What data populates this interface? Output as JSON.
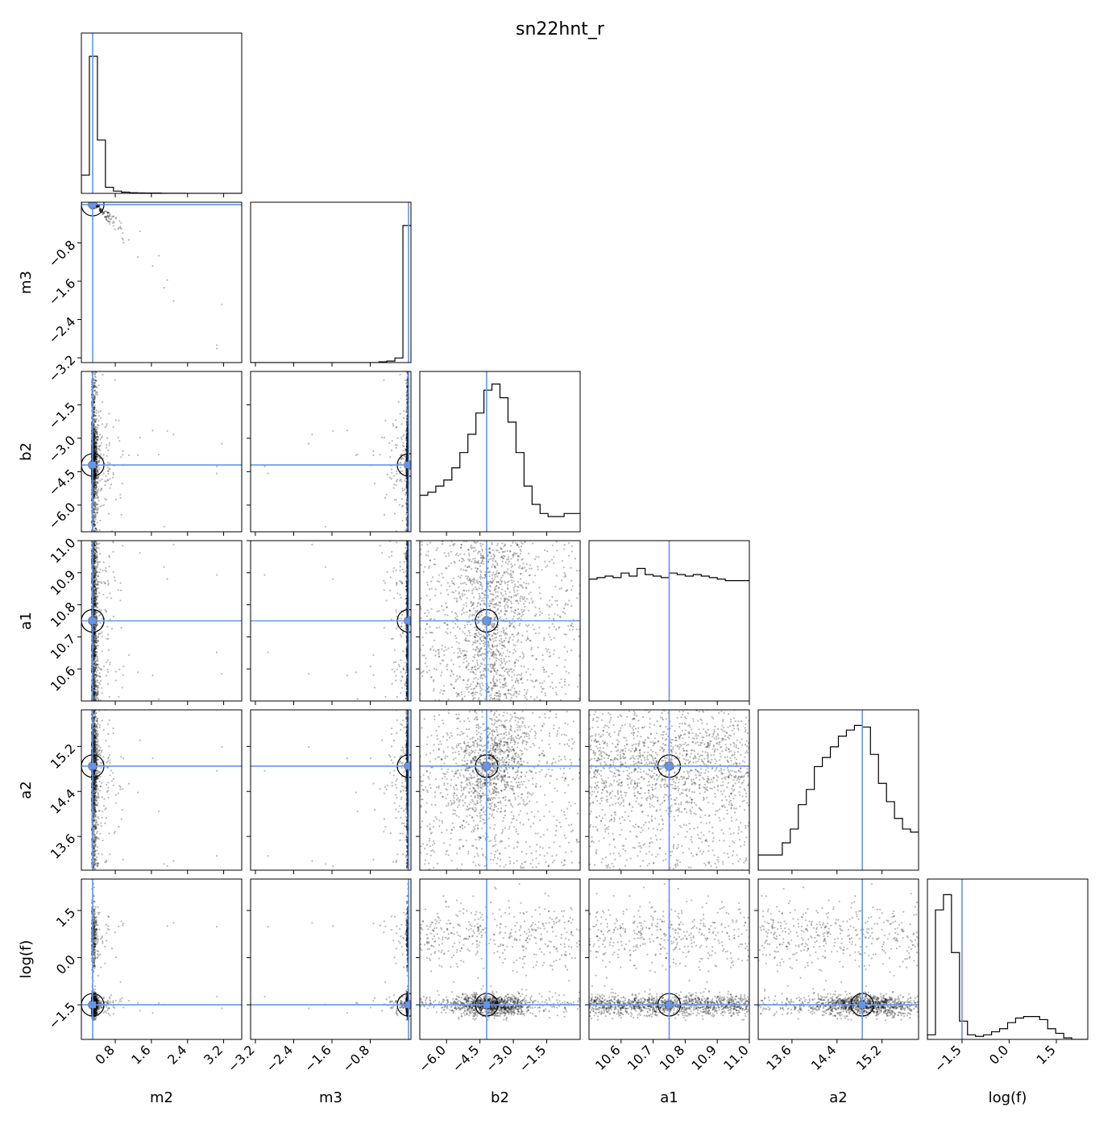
{
  "chart_data": {
    "type": "corner",
    "title": "sn22hnt_r",
    "truth_color": "#6495ed",
    "parameters": [
      {
        "label": "m2",
        "range": [
          0.05,
          3.6
        ],
        "ticks": [
          "0.8",
          "1.6",
          "2.4",
          "3.2"
        ],
        "tick_values": [
          0.8,
          1.6,
          2.4,
          3.2
        ],
        "truth": 0.3
      },
      {
        "label": "m3",
        "range": [
          -3.3,
          0.05
        ],
        "ticks": [
          "−3.2",
          "−2.4",
          "−1.6",
          "−0.8"
        ],
        "tick_values": [
          -3.2,
          -2.4,
          -1.6,
          -0.8
        ],
        "truth": 0.0
      },
      {
        "label": "b2",
        "range": [
          -7.2,
          0.0
        ],
        "ticks": [
          "−6.0",
          "−4.5",
          "−3.0",
          "−1.5"
        ],
        "tick_values": [
          -6.0,
          -4.5,
          -3.0,
          -1.5
        ],
        "truth": -4.2
      },
      {
        "label": "a1",
        "range": [
          10.5,
          11.0
        ],
        "ticks": [
          "10.6",
          "10.7",
          "10.8",
          "10.9",
          "11.0"
        ],
        "tick_values": [
          10.6,
          10.7,
          10.8,
          10.9,
          11.0
        ],
        "truth": 10.75
      },
      {
        "label": "a2",
        "range": [
          13.0,
          15.85
        ],
        "ticks": [
          "13.6",
          "14.4",
          "15.2"
        ],
        "tick_values": [
          13.6,
          14.4,
          15.2
        ],
        "truth": 14.85
      },
      {
        "label": "log(f)",
        "range": [
          -2.6,
          2.5
        ],
        "ticks": [
          "−1.5",
          "0.0",
          "1.5"
        ],
        "tick_values": [
          -1.5,
          0.0,
          1.5
        ],
        "truth": -1.5
      }
    ],
    "histograms": [
      {
        "parameter": "m2",
        "counts": [
          0.12,
          0.9,
          0.35,
          0.04,
          0.015,
          0.008,
          0.004,
          0.003,
          0.002,
          0.002,
          0.001,
          0.001,
          0.001,
          0.0,
          0.0,
          0.0,
          0.0,
          0.0,
          0.0,
          0.0
        ]
      },
      {
        "parameter": "m3",
        "counts": [
          0.0,
          0.0,
          0.0,
          0.0,
          0.0,
          0.0,
          0.0,
          0.0,
          0.0,
          0.0,
          0.0,
          0.0,
          0.0,
          0.0,
          0.0,
          0.0,
          0.005,
          0.01,
          0.03,
          0.9
        ]
      },
      {
        "parameter": "b2",
        "counts": [
          0.24,
          0.26,
          0.3,
          0.34,
          0.42,
          0.52,
          0.64,
          0.78,
          0.93,
          0.97,
          0.88,
          0.72,
          0.52,
          0.3,
          0.18,
          0.12,
          0.1,
          0.1,
          0.12,
          0.12
        ]
      },
      {
        "parameter": "a1",
        "counts": [
          0.8,
          0.81,
          0.82,
          0.81,
          0.84,
          0.82,
          0.87,
          0.83,
          0.82,
          0.81,
          0.84,
          0.83,
          0.82,
          0.83,
          0.82,
          0.81,
          0.8,
          0.79,
          0.79,
          0.79
        ]
      },
      {
        "parameter": "a2",
        "counts": [
          0.1,
          0.1,
          0.1,
          0.18,
          0.27,
          0.43,
          0.53,
          0.68,
          0.74,
          0.81,
          0.88,
          0.92,
          0.95,
          0.94,
          0.76,
          0.57,
          0.45,
          0.34,
          0.27,
          0.25
        ]
      },
      {
        "parameter": "log(f)",
        "counts": [
          0.03,
          0.85,
          0.95,
          0.57,
          0.12,
          0.03,
          0.02,
          0.03,
          0.05,
          0.07,
          0.11,
          0.14,
          0.15,
          0.15,
          0.13,
          0.07,
          0.04,
          0.01,
          0.0,
          0.0
        ]
      }
    ]
  }
}
